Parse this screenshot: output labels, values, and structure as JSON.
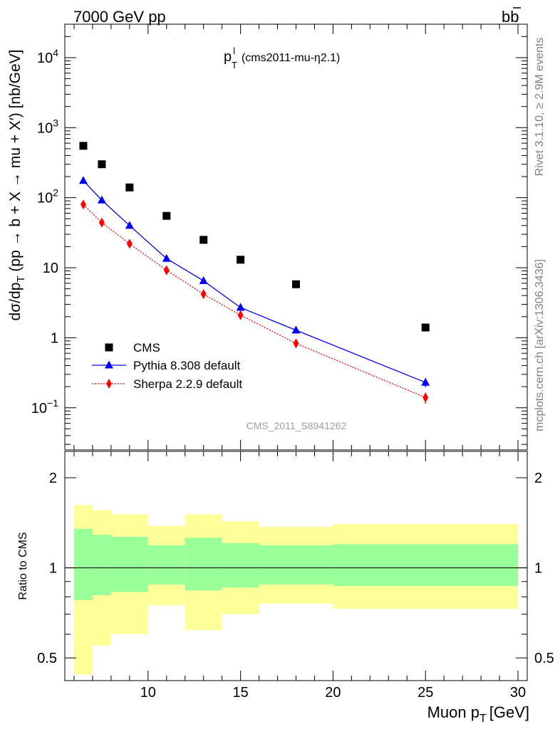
{
  "header": {
    "left": "7000 GeV pp",
    "right_base": "b",
    "right_bar": "b"
  },
  "plot_title": {
    "main": "p",
    "sup": "l",
    "sub": "T",
    "rest": "(cms2011-mu-η2.1)"
  },
  "side_labels": {
    "rivet": "Rivet 3.1.10, ≥ 2.9M events",
    "mcplots": "mcplots.cern.ch [arXiv:1306.3436]"
  },
  "watermark": "CMS_2011_S8941262",
  "y_axis_title": "dσ/dp_T (pp → b + X → mu + X′) [nb/GeV]",
  "ratio_axis_title": "Ratio to CMS",
  "x_axis_title": {
    "main": "Muon p",
    "sub": "T",
    "unit": "[GeV]"
  },
  "legend": [
    {
      "label": "CMS",
      "marker": "square",
      "color": "#000000"
    },
    {
      "label": "Pythia 8.308 default",
      "marker": "triangle",
      "color": "#0000ff",
      "line": "solid"
    },
    {
      "label": "Sherpa 2.2.9 default",
      "marker": "diamond",
      "color": "#ff0000",
      "line": "dotted"
    }
  ],
  "chart_data": {
    "type": "scatter",
    "x_range": [
      5.5,
      30.5
    ],
    "main_y_scale": "log",
    "main_y_range": [
      0.025,
      30000
    ],
    "main_y_ticks": [
      {
        "value": 0.1,
        "mantissa": "10",
        "exp": "−1"
      },
      {
        "value": 1,
        "mantissa": "1",
        "exp": ""
      },
      {
        "value": 10,
        "mantissa": "10",
        "exp": ""
      },
      {
        "value": 100,
        "mantissa": "10",
        "exp": "2"
      },
      {
        "value": 1000,
        "mantissa": "10",
        "exp": "3"
      },
      {
        "value": 10000,
        "mantissa": "10",
        "exp": "4"
      }
    ],
    "x_ticks": [
      10,
      15,
      20,
      25,
      30
    ],
    "ratio_y_range": [
      0.42,
      2.45
    ],
    "ratio_y_ticks": [
      0.5,
      1,
      2
    ],
    "series": [
      {
        "name": "CMS",
        "x": [
          6.5,
          7.5,
          9,
          11,
          13,
          15,
          18,
          25
        ],
        "y": [
          550,
          300,
          140,
          55,
          25,
          13,
          5.8,
          1.4
        ]
      },
      {
        "name": "Pythia 8.308 default",
        "x": [
          6.5,
          7.5,
          9,
          11,
          13,
          15,
          18,
          25
        ],
        "y": [
          175,
          92,
          40,
          13.5,
          6.5,
          2.7,
          1.28,
          0.23
        ],
        "yerr": [
          0,
          0,
          0,
          0,
          0,
          0.25,
          0.12,
          0.035
        ]
      },
      {
        "name": "Sherpa 2.2.9 default",
        "x": [
          6.5,
          7.5,
          9,
          11,
          13,
          15,
          18,
          25
        ],
        "y": [
          80,
          44,
          22,
          9.2,
          4.2,
          2.1,
          0.83,
          0.14
        ],
        "yerr": [
          0,
          0,
          0,
          0,
          0,
          0.15,
          0.06,
          0.025
        ]
      }
    ],
    "ratio_bands": [
      {
        "x0": 6,
        "x1": 7,
        "y_lo": 0.44,
        "y_hi": 1.62,
        "g_lo": 0.78,
        "g_hi": 1.35
      },
      {
        "x0": 7,
        "x1": 8,
        "y_lo": 0.55,
        "y_hi": 1.56,
        "g_lo": 0.81,
        "g_hi": 1.29
      },
      {
        "x0": 8,
        "x1": 10,
        "y_lo": 0.6,
        "y_hi": 1.51,
        "g_lo": 0.83,
        "g_hi": 1.27
      },
      {
        "x0": 10,
        "x1": 12,
        "y_lo": 0.75,
        "y_hi": 1.38,
        "g_lo": 0.88,
        "g_hi": 1.19
      },
      {
        "x0": 12,
        "x1": 14,
        "y_lo": 0.62,
        "y_hi": 1.51,
        "g_lo": 0.84,
        "g_hi": 1.26
      },
      {
        "x0": 14,
        "x1": 16,
        "y_lo": 0.7,
        "y_hi": 1.43,
        "g_lo": 0.86,
        "g_hi": 1.21
      },
      {
        "x0": 16,
        "x1": 20,
        "y_lo": 0.76,
        "y_hi": 1.37,
        "g_lo": 0.88,
        "g_hi": 1.19
      },
      {
        "x0": 20,
        "x1": 30,
        "y_lo": 0.73,
        "y_hi": 1.4,
        "g_lo": 0.87,
        "g_hi": 1.2
      }
    ],
    "band_colors": {
      "outer": "#ffff99",
      "inner": "#99ff99"
    }
  }
}
